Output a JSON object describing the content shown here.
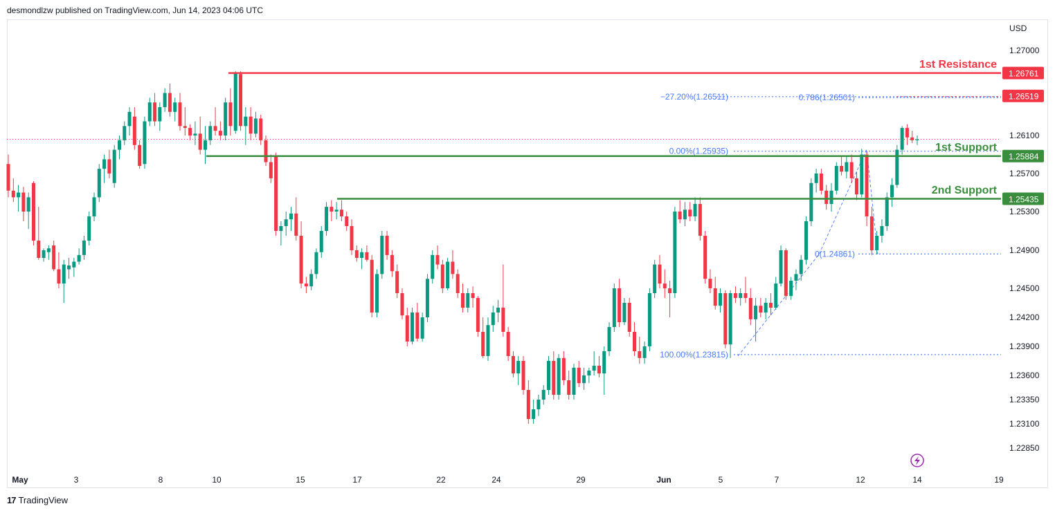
{
  "header": {
    "publish_text": "desmondlzw published on TradingView.com, Jun 14, 2023 04:06 UTC"
  },
  "footer": {
    "logo": "17",
    "brand": "TradingView"
  },
  "chart_data": {
    "type": "candlestick",
    "currency": "USD",
    "y_ticks": [
      "1.27000",
      "1.26100",
      "1.25700",
      "1.25300",
      "1.24900",
      "1.24500",
      "1.24200",
      "1.23900",
      "1.23600",
      "1.23350",
      "1.23100",
      "1.22850"
    ],
    "x_ticks": [
      "May",
      "3",
      "8",
      "10",
      "15",
      "17",
      "22",
      "24",
      "29",
      "Jun",
      "5",
      "7",
      "12",
      "14",
      "19"
    ],
    "levels": [
      {
        "name": "1st Resistance",
        "price_label": "1.26761",
        "value": 1.26761,
        "color": "#f23645"
      },
      {
        "name": "1st Support",
        "price_label": "1.25884",
        "value": 1.25884,
        "color": "#388e3c"
      },
      {
        "name": "2nd Support",
        "price_label": "1.25435",
        "value": 1.25435,
        "color": "#388e3c"
      }
    ],
    "last_price_label": "1.26519",
    "fib_labels": [
      {
        "text": "−27.20%(1.26511)",
        "value": 1.26511
      },
      {
        "text": "0.786(1.26501)",
        "value": 1.26501
      },
      {
        "text": "0.00%(1.25935)",
        "value": 1.25935
      },
      {
        "text": "0(1.24861)",
        "value": 1.24861
      },
      {
        "text": "100.00%(1.23815)",
        "value": 1.23815
      }
    ],
    "current_price": 1.2606,
    "candles": [
      [
        1.258,
        1.259,
        1.2545,
        1.2552
      ],
      [
        1.2552,
        1.2565,
        1.254,
        1.2545
      ],
      [
        1.2545,
        1.2558,
        1.253,
        1.255
      ],
      [
        1.255,
        1.2556,
        1.252,
        1.253
      ],
      [
        1.253,
        1.255,
        1.2512,
        1.2545
      ],
      [
        1.256,
        1.2562,
        1.2495,
        1.25
      ],
      [
        1.25,
        1.2535,
        1.248,
        1.2482
      ],
      [
        1.2482,
        1.2492,
        1.2478,
        1.249
      ],
      [
        1.2488,
        1.2495,
        1.248,
        1.2492
      ],
      [
        1.2495,
        1.25,
        1.2468,
        1.247
      ],
      [
        1.247,
        1.2488,
        1.245,
        1.2455
      ],
      [
        1.2455,
        1.248,
        1.2435,
        1.2475
      ],
      [
        1.247,
        1.2482,
        1.246,
        1.2474
      ],
      [
        1.2472,
        1.2482,
        1.2462,
        1.2478
      ],
      [
        1.2478,
        1.2492,
        1.2475,
        1.2485
      ],
      [
        1.2485,
        1.2505,
        1.248,
        1.25
      ],
      [
        1.25,
        1.253,
        1.2495,
        1.2525
      ],
      [
        1.2525,
        1.255,
        1.252,
        1.2545
      ],
      [
        1.2545,
        1.258,
        1.254,
        1.2575
      ],
      [
        1.2575,
        1.259,
        1.256,
        1.2585
      ],
      [
        1.2585,
        1.2595,
        1.2565,
        1.257
      ],
      [
        1.256,
        1.26,
        1.2555,
        1.2595
      ],
      [
        1.2595,
        1.261,
        1.2585,
        1.2605
      ],
      [
        1.2605,
        1.2625,
        1.26,
        1.262
      ],
      [
        1.262,
        1.264,
        1.261,
        1.2635
      ],
      [
        1.263,
        1.264,
        1.2595,
        1.26
      ],
      [
        1.26,
        1.2605,
        1.2575,
        1.2578
      ],
      [
        1.258,
        1.263,
        1.2575,
        1.2625
      ],
      [
        1.2625,
        1.265,
        1.262,
        1.2645
      ],
      [
        1.2645,
        1.2655,
        1.262,
        1.2625
      ],
      [
        1.2625,
        1.2645,
        1.2615,
        1.264
      ],
      [
        1.264,
        1.266,
        1.2635,
        1.2655
      ],
      [
        1.2655,
        1.2665,
        1.263,
        1.2635
      ],
      [
        1.2635,
        1.265,
        1.2625,
        1.2645
      ],
      [
        1.2645,
        1.2655,
        1.2615,
        1.262
      ],
      [
        1.262,
        1.264,
        1.261,
        1.2618
      ],
      [
        1.2618,
        1.2622,
        1.2605,
        1.261
      ],
      [
        1.261,
        1.2625,
        1.26,
        1.2612
      ],
      [
        1.2612,
        1.263,
        1.259,
        1.2595
      ],
      [
        1.2595,
        1.262,
        1.258,
        1.2605
      ],
      [
        1.2605,
        1.2625,
        1.26,
        1.262
      ],
      [
        1.262,
        1.264,
        1.261,
        1.2615
      ],
      [
        1.2615,
        1.2625,
        1.2605,
        1.261
      ],
      [
        1.261,
        1.265,
        1.2605,
        1.2645
      ],
      [
        1.2645,
        1.266,
        1.261,
        1.262
      ],
      [
        1.2615,
        1.2678,
        1.2612,
        1.2676
      ],
      [
        1.2675,
        1.2678,
        1.2615,
        1.262
      ],
      [
        1.262,
        1.264,
        1.26,
        1.263
      ],
      [
        1.263,
        1.264,
        1.2605,
        1.2612
      ],
      [
        1.2612,
        1.2635,
        1.2608,
        1.2628
      ],
      [
        1.2628,
        1.2632,
        1.26,
        1.2605
      ],
      [
        1.2605,
        1.261,
        1.2578,
        1.2582
      ],
      [
        1.2582,
        1.259,
        1.256,
        1.2565
      ],
      [
        1.2588,
        1.2592,
        1.2505,
        1.251
      ],
      [
        1.251,
        1.252,
        1.2495,
        1.2515
      ],
      [
        1.2515,
        1.253,
        1.2505,
        1.2522
      ],
      [
        1.2522,
        1.2535,
        1.251,
        1.2528
      ],
      [
        1.2528,
        1.2545,
        1.25,
        1.2505
      ],
      [
        1.2505,
        1.252,
        1.245,
        1.2455
      ],
      [
        1.2455,
        1.2462,
        1.2445,
        1.2452
      ],
      [
        1.2452,
        1.247,
        1.2448,
        1.2465
      ],
      [
        1.2465,
        1.2492,
        1.246,
        1.2488
      ],
      [
        1.2488,
        1.2515,
        1.2482,
        1.251
      ],
      [
        1.251,
        1.254,
        1.2505,
        1.2535
      ],
      [
        1.2535,
        1.2542,
        1.252,
        1.253
      ],
      [
        1.253,
        1.254,
        1.2522,
        1.2532
      ],
      [
        1.2532,
        1.2542,
        1.252,
        1.2525
      ],
      [
        1.2525,
        1.253,
        1.251,
        1.2515
      ],
      [
        1.2515,
        1.2522,
        1.2485,
        1.249
      ],
      [
        1.249,
        1.2495,
        1.2478,
        1.2482
      ],
      [
        1.2482,
        1.2492,
        1.247,
        1.2488
      ],
      [
        1.2488,
        1.2495,
        1.2478,
        1.248
      ],
      [
        1.248,
        1.2485,
        1.242,
        1.2425
      ],
      [
        1.2425,
        1.247,
        1.242,
        1.2465
      ],
      [
        1.2465,
        1.251,
        1.246,
        1.2505
      ],
      [
        1.2505,
        1.251,
        1.248,
        1.2485
      ],
      [
        1.2485,
        1.249,
        1.2462,
        1.2468
      ],
      [
        1.2468,
        1.2475,
        1.244,
        1.2445
      ],
      [
        1.2445,
        1.245,
        1.2418,
        1.2422
      ],
      [
        1.2422,
        1.243,
        1.239,
        1.2395
      ],
      [
        1.2395,
        1.243,
        1.2392,
        1.2425
      ],
      [
        1.2425,
        1.2435,
        1.2395,
        1.2398
      ],
      [
        1.2398,
        1.2425,
        1.2395,
        1.242
      ],
      [
        1.242,
        1.2465,
        1.2415,
        1.246
      ],
      [
        1.246,
        1.249,
        1.2455,
        1.2485
      ],
      [
        1.2485,
        1.2495,
        1.247,
        1.2475
      ],
      [
        1.2475,
        1.248,
        1.2445,
        1.245
      ],
      [
        1.245,
        1.2482,
        1.2448,
        1.2478
      ],
      [
        1.2478,
        1.249,
        1.246,
        1.2465
      ],
      [
        1.2465,
        1.247,
        1.244,
        1.2445
      ],
      [
        1.2445,
        1.2455,
        1.2425,
        1.243
      ],
      [
        1.243,
        1.245,
        1.2425,
        1.2445
      ],
      [
        1.2445,
        1.2452,
        1.243,
        1.244
      ],
      [
        1.244,
        1.2442,
        1.24,
        1.2405
      ],
      [
        1.2405,
        1.242,
        1.2378,
        1.238
      ],
      [
        1.238,
        1.242,
        1.2375,
        1.2412
      ],
      [
        1.2412,
        1.2432,
        1.2405,
        1.2425
      ],
      [
        1.2425,
        1.2438,
        1.2415,
        1.243
      ],
      [
        1.243,
        1.2475,
        1.24,
        1.2405
      ],
      [
        1.2405,
        1.241,
        1.2375,
        1.238
      ],
      [
        1.238,
        1.2385,
        1.2358,
        1.2362
      ],
      [
        1.2362,
        1.238,
        1.235,
        1.2375
      ],
      [
        1.2375,
        1.238,
        1.234,
        1.2345
      ],
      [
        1.2345,
        1.2355,
        1.231,
        1.2315
      ],
      [
        1.2315,
        1.2335,
        1.231,
        1.2325
      ],
      [
        1.2325,
        1.234,
        1.2318,
        1.2335
      ],
      [
        1.2335,
        1.235,
        1.233,
        1.2345
      ],
      [
        1.2345,
        1.238,
        1.234,
        1.2375
      ],
      [
        1.2375,
        1.2385,
        1.2335,
        1.234
      ],
      [
        1.234,
        1.2382,
        1.2335,
        1.2378
      ],
      [
        1.2378,
        1.2385,
        1.235,
        1.2355
      ],
      [
        1.2355,
        1.2365,
        1.2335,
        1.234
      ],
      [
        1.234,
        1.2372,
        1.2335,
        1.2368
      ],
      [
        1.2368,
        1.2375,
        1.2348,
        1.2352
      ],
      [
        1.2352,
        1.2368,
        1.2345,
        1.236
      ],
      [
        1.236,
        1.2368,
        1.2352,
        1.2365
      ],
      [
        1.2365,
        1.2385,
        1.236,
        1.237
      ],
      [
        1.237,
        1.238,
        1.2358,
        1.2362
      ],
      [
        1.2362,
        1.239,
        1.234,
        1.2385
      ],
      [
        1.2385,
        1.2415,
        1.238,
        1.241
      ],
      [
        1.241,
        1.2455,
        1.2405,
        1.245
      ],
      [
        1.245,
        1.246,
        1.241,
        1.2415
      ],
      [
        1.2415,
        1.244,
        1.2412,
        1.2435
      ],
      [
        1.2435,
        1.244,
        1.24,
        1.2405
      ],
      [
        1.2405,
        1.2415,
        1.238,
        1.2385
      ],
      [
        1.2385,
        1.24,
        1.2372,
        1.2378
      ],
      [
        1.2378,
        1.2395,
        1.2372,
        1.239
      ],
      [
        1.239,
        1.245,
        1.2385,
        1.2445
      ],
      [
        1.2445,
        1.248,
        1.244,
        1.2475
      ],
      [
        1.2475,
        1.2485,
        1.245,
        1.2455
      ],
      [
        1.2455,
        1.247,
        1.244,
        1.245
      ],
      [
        1.245,
        1.2458,
        1.242,
        1.2445
      ],
      [
        1.2445,
        1.2535,
        1.244,
        1.253
      ],
      [
        1.253,
        1.2542,
        1.2518,
        1.2522
      ],
      [
        1.2522,
        1.254,
        1.2515,
        1.2532
      ],
      [
        1.2532,
        1.254,
        1.252,
        1.2525
      ],
      [
        1.2525,
        1.2545,
        1.252,
        1.2538
      ],
      [
        1.2538,
        1.2545,
        1.25,
        1.2505
      ],
      [
        1.2505,
        1.251,
        1.2455,
        1.246
      ],
      [
        1.246,
        1.247,
        1.2445,
        1.245
      ],
      [
        1.245,
        1.2462,
        1.2428,
        1.2432
      ],
      [
        1.2432,
        1.245,
        1.2425,
        1.2445
      ],
      [
        1.2445,
        1.2448,
        1.2388,
        1.2392
      ],
      [
        1.2392,
        1.2448,
        1.2378,
        1.2445
      ],
      [
        1.2445,
        1.2452,
        1.2435,
        1.244
      ],
      [
        1.244,
        1.245,
        1.2432,
        1.2445
      ],
      [
        1.2445,
        1.2462,
        1.2435,
        1.244
      ],
      [
        1.244,
        1.245,
        1.2412,
        1.2418
      ],
      [
        1.2418,
        1.244,
        1.2395,
        1.2432
      ],
      [
        1.2432,
        1.244,
        1.242,
        1.2425
      ],
      [
        1.2425,
        1.244,
        1.2418,
        1.2435
      ],
      [
        1.2435,
        1.2445,
        1.2422,
        1.243
      ],
      [
        1.243,
        1.2462,
        1.2428,
        1.2455
      ],
      [
        1.2455,
        1.2495,
        1.2452,
        1.249
      ],
      [
        1.249,
        1.2492,
        1.2438,
        1.2442
      ],
      [
        1.2442,
        1.2462,
        1.2438,
        1.2458
      ],
      [
        1.2458,
        1.247,
        1.2448,
        1.2465
      ],
      [
        1.2465,
        1.2485,
        1.2458,
        1.248
      ],
      [
        1.248,
        1.2525,
        1.2475,
        1.252
      ],
      [
        1.252,
        1.2565,
        1.2515,
        1.256
      ],
      [
        1.256,
        1.2575,
        1.255,
        1.257
      ],
      [
        1.257,
        1.2575,
        1.2548,
        1.2552
      ],
      [
        1.2552,
        1.2558,
        1.2532,
        1.2538
      ],
      [
        1.2538,
        1.256,
        1.253,
        1.2552
      ],
      [
        1.2552,
        1.2582,
        1.2548,
        1.2578
      ],
      [
        1.2578,
        1.2588,
        1.2568,
        1.2572
      ],
      [
        1.2572,
        1.2588,
        1.2565,
        1.2582
      ],
      [
        1.2582,
        1.259,
        1.256,
        1.2565
      ],
      [
        1.2565,
        1.2572,
        1.2542,
        1.2548
      ],
      [
        1.2548,
        1.2596,
        1.2545,
        1.259
      ],
      [
        1.259,
        1.2593,
        1.2515,
        1.2525
      ],
      [
        1.2525,
        1.2535,
        1.2485,
        1.249
      ],
      [
        1.249,
        1.251,
        1.2486,
        1.2505
      ],
      [
        1.2505,
        1.2522,
        1.2498,
        1.2515
      ],
      [
        1.2515,
        1.255,
        1.251,
        1.2545
      ],
      [
        1.2545,
        1.2565,
        1.2535,
        1.2558
      ],
      [
        1.2558,
        1.26,
        1.2555,
        1.2595
      ],
      [
        1.2595,
        1.262,
        1.259,
        1.2618
      ],
      [
        1.2618,
        1.2622,
        1.26,
        1.2608
      ],
      [
        1.2608,
        1.2615,
        1.2602,
        1.2605
      ],
      [
        1.2605,
        1.261,
        1.26,
        1.2606
      ]
    ]
  }
}
